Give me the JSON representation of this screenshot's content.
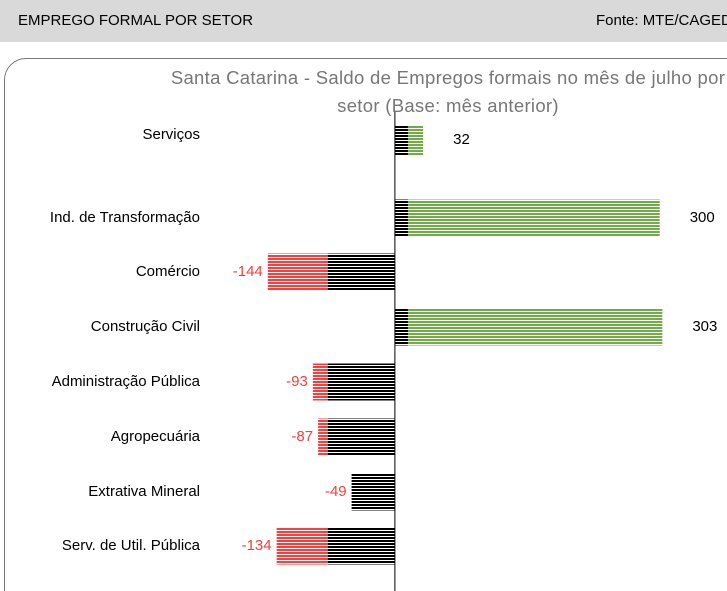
{
  "header": {
    "title": "EMPREGO FORMAL POR SETOR",
    "source": "Fonte: MTE/CAGED"
  },
  "chart_data": {
    "type": "barh",
    "title": "Santa Catarina - Saldo de Empregos formais no mês de julho por setor (Base: mês anterior)",
    "categories": [
      "Serviços",
      "Ind. de Transformação",
      "Comércio",
      "Construção Civil",
      "Administração Pública",
      "Agropecuária",
      "Extrativa Mineral",
      "Serv. de Util. Pública"
    ],
    "values": [
      32,
      300,
      -144,
      303,
      -93,
      -87,
      -49,
      -134
    ],
    "positive_color": "#70ad47",
    "negative_color": "#ff3b3b",
    "xlim": [
      -150,
      340
    ]
  }
}
